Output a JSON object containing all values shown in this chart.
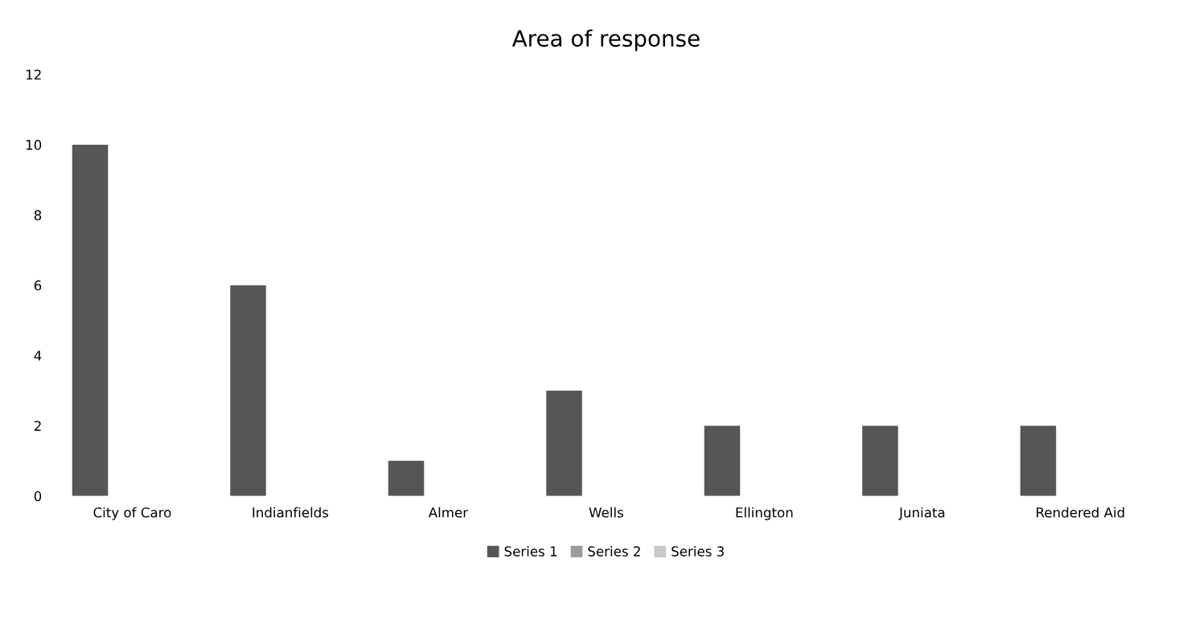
{
  "chart_data": {
    "type": "bar",
    "title": "Area of response",
    "categories": [
      "City of Caro",
      "Indianfields",
      "Almer",
      "Wells",
      "Ellington",
      "Juniata",
      "Rendered Aid"
    ],
    "series": [
      {
        "name": "Series 1",
        "color": "#565656",
        "values": [
          10,
          6,
          1,
          3,
          2,
          2,
          2
        ]
      },
      {
        "name": "Series 2",
        "color": "#9a9a9a",
        "values": [
          null,
          null,
          null,
          null,
          null,
          null,
          null
        ]
      },
      {
        "name": "Series 3",
        "color": "#c8c8c8",
        "values": [
          null,
          null,
          null,
          null,
          null,
          null,
          null
        ]
      }
    ],
    "ylim": [
      0,
      12
    ],
    "yticks": [
      0,
      2,
      4,
      6,
      8,
      10,
      12
    ],
    "grid": false,
    "legend": "bottom"
  }
}
